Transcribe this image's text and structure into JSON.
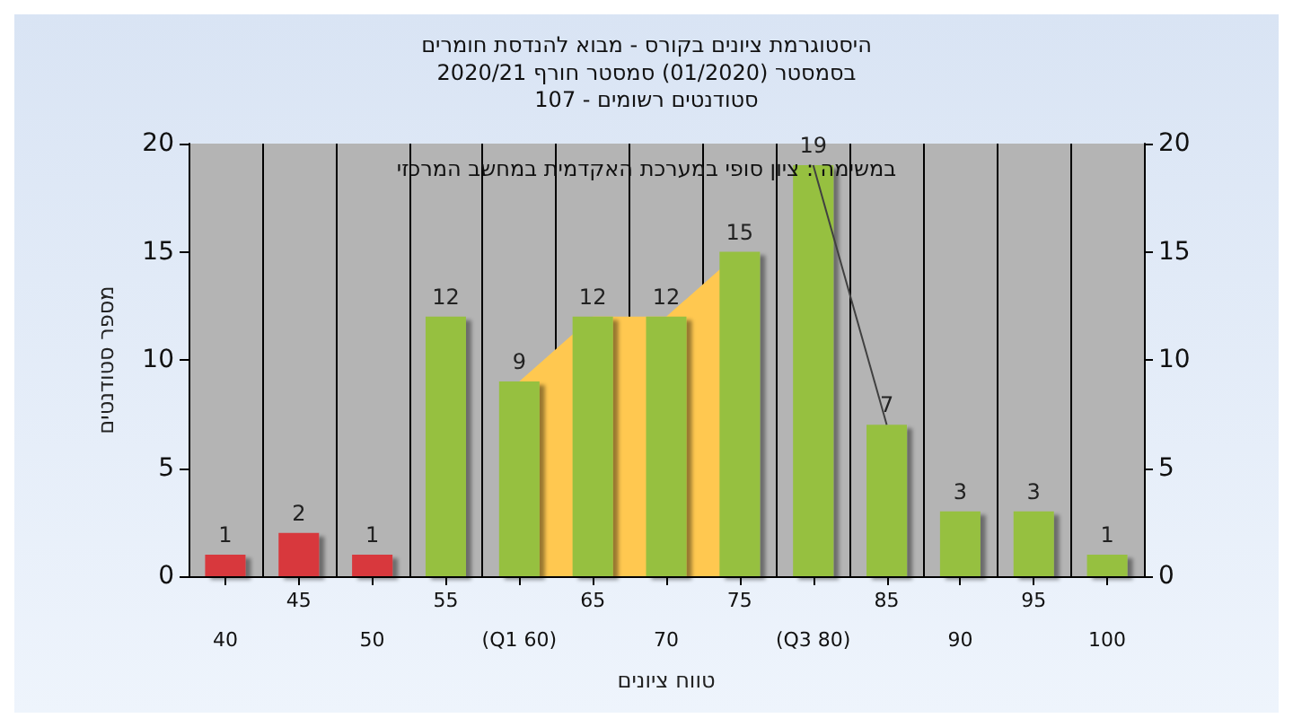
{
  "chart_data": {
    "type": "bar",
    "title": "היסטוגרמת ציונים בקורס - מבוא להנדסת חומרים",
    "subtitle": "בסמסטר (01/2020) סמסטר חורף 2020/21\nסטודנטים רשומים - 107",
    "annotations": [
      "במשימה : ציון סופי במערכת האקדמית במחשב המרכזי"
    ],
    "xlabel": "טווח ציונים",
    "ylabel": "מספר סטודנטים",
    "categories": [
      "40",
      "45",
      "50",
      "55",
      "(Q1 60)",
      "65",
      "70",
      "75",
      "(Q3 80)",
      "85",
      "90",
      "95",
      "100"
    ],
    "series": [
      {
        "type": "area",
        "color": "#ffc850",
        "values": [
          null,
          null,
          null,
          null,
          9,
          12,
          12,
          15,
          null,
          null,
          null,
          null,
          null
        ],
        "value_labels": [
          null,
          null,
          null,
          null,
          null,
          null,
          null,
          null,
          null,
          null,
          null,
          null,
          null
        ]
      },
      {
        "type": "line",
        "color": "#404040",
        "values": [
          null,
          null,
          null,
          null,
          null,
          null,
          null,
          null,
          19,
          7,
          null,
          null,
          null
        ],
        "value_labels": [
          null,
          null,
          null,
          null,
          null,
          null,
          null,
          null,
          null,
          null,
          null,
          null,
          null
        ]
      },
      {
        "values": [
          1,
          2,
          1,
          12,
          9,
          12,
          12,
          15,
          19,
          7,
          3,
          3,
          1
        ],
        "colors": [
          "#d8383c",
          "#d8383c",
          "#d8383c",
          "#96c040",
          "#96c040",
          "#96c040",
          "#96c040",
          "#96c040",
          "#96c040",
          "#96c040",
          "#96c040",
          "#96c040",
          "#96c040"
        ]
      }
    ],
    "ylim": [
      0,
      20
    ],
    "yticks": [
      0,
      5,
      10,
      15,
      20
    ],
    "y2lim": [
      0,
      20
    ],
    "y2ticks": [
      0,
      5,
      10,
      15,
      20
    ],
    "data_labels": true,
    "grid": "x",
    "marker": "none"
  }
}
